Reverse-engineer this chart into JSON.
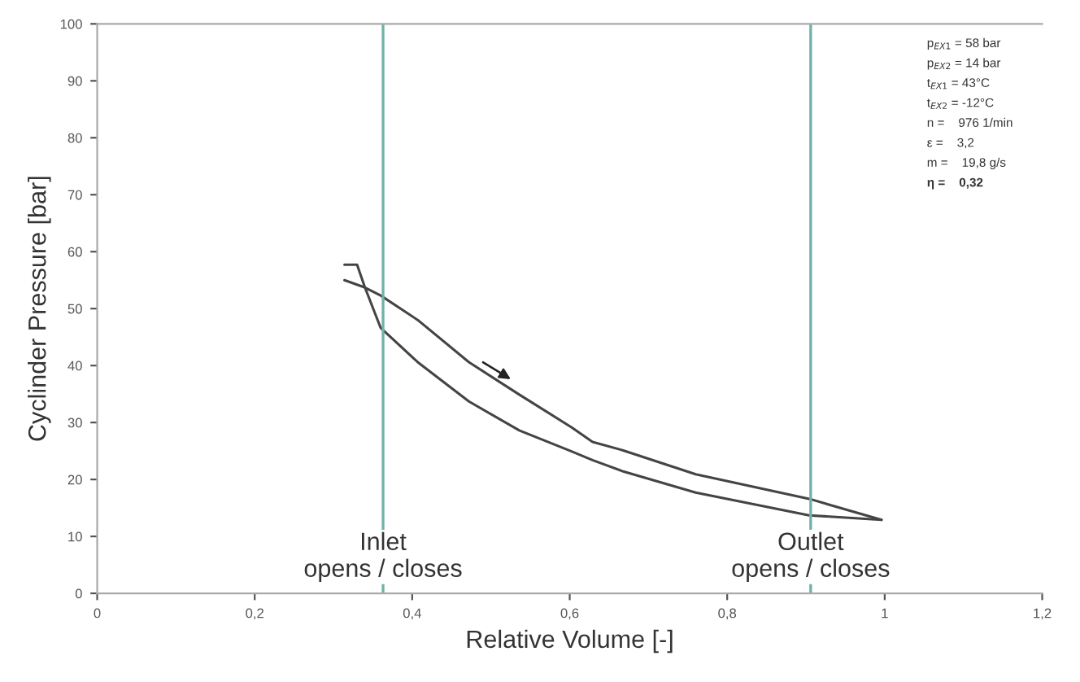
{
  "chart_data": {
    "type": "line",
    "xlabel": "Relative Volume [-]",
    "ylabel": "Cyclinder Pressure [bar]",
    "series": [
      {
        "color": "#444444",
        "x": [
          0.314,
          0.34,
          0.36,
          0.407,
          0.472,
          0.536,
          0.603,
          0.629,
          0.668,
          0.76,
          0.904,
          0.996
        ],
        "values": [
          55,
          53.7,
          52.3,
          48,
          40.6,
          34.9,
          29.1,
          26.6,
          25.1,
          20.9,
          16.6,
          12.9
        ]
      },
      {
        "color": "#444444",
        "x": [
          0.314,
          0.33,
          0.34,
          0.36,
          0.407,
          0.472,
          0.536,
          0.603,
          0.629,
          0.668,
          0.76,
          0.904,
          0.996
        ],
        "values": [
          57.7,
          57.7,
          53.7,
          46.6,
          40.6,
          33.7,
          28.6,
          24.9,
          23.4,
          21.4,
          17.7,
          13.7,
          12.9
        ]
      }
    ],
    "xlim": [
      0,
      1.2
    ],
    "ylim": [
      0,
      100
    ],
    "xticks": [
      0,
      {
        "value": 0.2,
        "label": "0,2"
      },
      {
        "value": 0.4,
        "label": "0,4"
      },
      {
        "value": 0.6,
        "label": "0,6"
      },
      {
        "value": 0.8,
        "label": "0,8"
      },
      1,
      {
        "value": 1.2,
        "label": "1,2"
      }
    ],
    "yticks": [
      0,
      10,
      20,
      30,
      40,
      50,
      60,
      70,
      80,
      90,
      100
    ],
    "ref_lines": [
      {
        "axis": "x",
        "value": 0.363,
        "label": "Inlet\nopens / closes",
        "color": "#6fb3aa"
      },
      {
        "axis": "x",
        "value": 0.906,
        "label": "Outlet\nopens / closes",
        "color": "#6fb3aa"
      }
    ],
    "annotations": [
      "p$_{EX1}$ = 58 bar",
      "p$_{EX2}$ = 14 bar",
      "t$_{EX1}$ = 43°C",
      "t$_{EX2}$ = -12°C",
      "n =    976 1/min",
      "ε =    3,2",
      "m =    19,8 g/s",
      "η =    0,32"
    ],
    "grid": false,
    "legend": false,
    "marker": "none",
    "line_style": "solid"
  }
}
